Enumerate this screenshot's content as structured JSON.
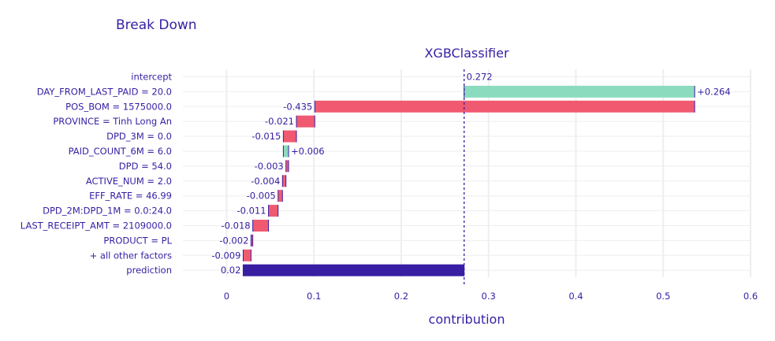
{
  "title": "Break Down",
  "chart_data": {
    "type": "waterfall",
    "subtitle": "XGBClassifier",
    "xlabel": "contribution",
    "xlim": [
      -0.05,
      0.6
    ],
    "xticks": [
      "0",
      "0.1",
      "0.2",
      "0.3",
      "0.4",
      "0.5",
      "0.6"
    ],
    "xtick_values": [
      0,
      0.1,
      0.2,
      0.3,
      0.4,
      0.5,
      0.6
    ],
    "intercept_value": 0.272,
    "grid": true,
    "colors": {
      "positive": "#8bdcbe",
      "negative": "#f05a71",
      "prediction": "#371ea3",
      "text": "#371ea3",
      "grid": "#eeeeee"
    },
    "rows": [
      {
        "label": "intercept",
        "start": 0.272,
        "end": 0.272,
        "value_label": "0.272",
        "kind": "intercept"
      },
      {
        "label": "DAY_FROM_LAST_PAID = 20.0",
        "start": 0.272,
        "end": 0.536,
        "value_label": "+0.264",
        "kind": "positive"
      },
      {
        "label": "POS_BOM = 1575000.0",
        "start": 0.536,
        "end": 0.101,
        "value_label": "-0.435",
        "kind": "negative"
      },
      {
        "label": "PROVINCE = Tinh Long An",
        "start": 0.101,
        "end": 0.08,
        "value_label": "-0.021",
        "kind": "negative"
      },
      {
        "label": "DPD_3M = 0.0",
        "start": 0.08,
        "end": 0.065,
        "value_label": "-0.015",
        "kind": "negative"
      },
      {
        "label": "PAID_COUNT_6M = 6.0",
        "start": 0.065,
        "end": 0.071,
        "value_label": "+0.006",
        "kind": "positive"
      },
      {
        "label": "DPD = 54.0",
        "start": 0.071,
        "end": 0.068,
        "value_label": "-0.003",
        "kind": "negative"
      },
      {
        "label": "ACTIVE_NUM = 2.0",
        "start": 0.068,
        "end": 0.064,
        "value_label": "-0.004",
        "kind": "negative"
      },
      {
        "label": "EFF_RATE = 46.99",
        "start": 0.064,
        "end": 0.059,
        "value_label": "-0.005",
        "kind": "negative"
      },
      {
        "label": "DPD_2M:DPD_1M = 0.0:24.0",
        "start": 0.059,
        "end": 0.048,
        "value_label": "-0.011",
        "kind": "negative"
      },
      {
        "label": "LAST_RECEIPT_AMT = 2109000.0",
        "start": 0.048,
        "end": 0.03,
        "value_label": "-0.018",
        "kind": "negative"
      },
      {
        "label": "PRODUCT = PL",
        "start": 0.03,
        "end": 0.028,
        "value_label": "-0.002",
        "kind": "negative"
      },
      {
        "label": "+ all other factors",
        "start": 0.028,
        "end": 0.019,
        "value_label": "-0.009",
        "kind": "negative"
      },
      {
        "label": "prediction",
        "start": 0.272,
        "end": 0.019,
        "value_label": "0.02",
        "kind": "prediction"
      }
    ]
  }
}
